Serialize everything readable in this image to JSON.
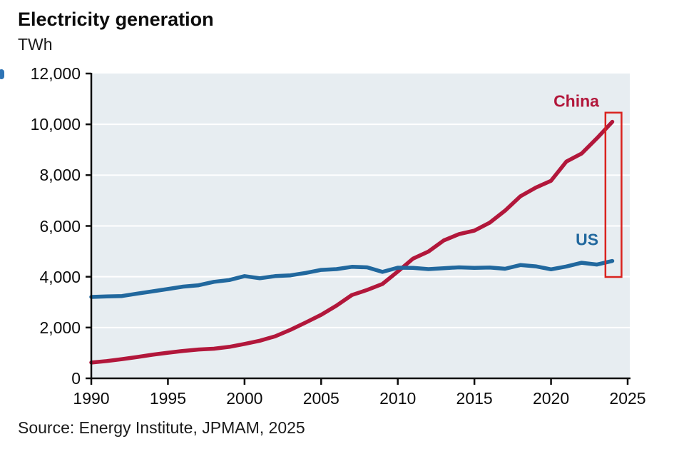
{
  "header": {
    "title": "Electricity generation",
    "unit": "TWh"
  },
  "source": "Source: Energy Institute, JPMAM, 2025",
  "colors": {
    "china": "#b2173b",
    "us": "#21689e",
    "highlight_box": "#d9231f",
    "plot_bg": "#e7edf1",
    "gridline": "#ffffff",
    "axis": "#0c0c0c",
    "edge_artifact": "#2e74b5"
  },
  "chart_data": {
    "type": "line",
    "title": "Electricity generation",
    "ylabel": "TWh",
    "xlabel": "",
    "xlim": [
      1990,
      2025
    ],
    "ylim": [
      0,
      12000
    ],
    "grid": "horizontal white gridlines on shaded panel",
    "legend_position": "inline labels near right ends of lines",
    "x_ticks": [
      1990,
      1995,
      2000,
      2005,
      2010,
      2015,
      2020,
      2025
    ],
    "x_tick_labels": [
      "1990",
      "1995",
      "2000",
      "2005",
      "2010",
      "2015",
      "2020",
      "2025"
    ],
    "y_ticks": [
      0,
      2000,
      4000,
      6000,
      8000,
      10000,
      12000
    ],
    "y_tick_labels": [
      "0",
      "2,000",
      "4,000",
      "6,000",
      "8,000",
      "10,000",
      "12,000"
    ],
    "x": [
      1990,
      1991,
      1992,
      1993,
      1994,
      1995,
      1996,
      1997,
      1998,
      1999,
      2000,
      2001,
      2002,
      2003,
      2004,
      2005,
      2006,
      2007,
      2008,
      2009,
      2010,
      2011,
      2012,
      2013,
      2014,
      2015,
      2016,
      2017,
      2018,
      2019,
      2020,
      2021,
      2022,
      2023,
      2024
    ],
    "series": [
      {
        "name": "China",
        "color_key": "china",
        "values": [
          620,
          680,
          755,
          840,
          930,
          1010,
          1080,
          1135,
          1165,
          1240,
          1355,
          1480,
          1655,
          1910,
          2200,
          2500,
          2865,
          3280,
          3480,
          3715,
          4205,
          4715,
          4990,
          5430,
          5680,
          5815,
          6130,
          6600,
          7165,
          7505,
          7780,
          8535,
          8850,
          9455,
          10100
        ]
      },
      {
        "name": "US",
        "color_key": "us",
        "values": [
          3205,
          3225,
          3240,
          3335,
          3425,
          3515,
          3610,
          3665,
          3800,
          3870,
          4025,
          3940,
          4025,
          4055,
          4150,
          4270,
          4300,
          4390,
          4370,
          4190,
          4355,
          4350,
          4300,
          4335,
          4370,
          4350,
          4365,
          4315,
          4460,
          4410,
          4290,
          4405,
          4550,
          4480,
          4620
        ]
      }
    ],
    "series_labels": [
      {
        "text": "China",
        "year": 2021.65,
        "value": 10900,
        "color_key": "china"
      },
      {
        "text": "US",
        "year": 2022.35,
        "value": 5460,
        "color_key": "us"
      }
    ],
    "highlight_box": {
      "year_from": 2023.55,
      "year_to": 2024.6,
      "value_from": 3990,
      "value_to": 10460
    }
  }
}
